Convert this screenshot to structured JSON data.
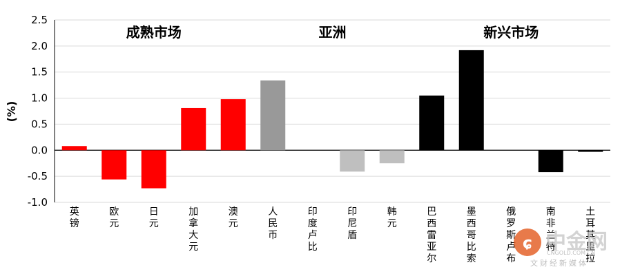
{
  "chart_data": {
    "type": "bar",
    "ylabel": "(%)",
    "ylim": [
      -1.0,
      2.5
    ],
    "yticks": [
      "2.5",
      "2.0",
      "1.5",
      "1.0",
      "0.5",
      "0.0",
      "-0.5",
      "-1.0"
    ],
    "grid": true,
    "groups": [
      {
        "label": "成熟市场",
        "start": 0,
        "end": 4
      },
      {
        "label": "亚洲",
        "start": 5,
        "end": 8
      },
      {
        "label": "新兴市场",
        "start": 9,
        "end": 13
      }
    ],
    "categories": [
      "英镑",
      "欧元",
      "日元",
      "加拿大元",
      "澳元",
      "人民币",
      "印度卢比",
      "印尼盾",
      "韩元",
      "巴西雷亚尔",
      "墨西哥比索",
      "俄罗斯卢布",
      "南非兰特",
      "土耳其里拉"
    ],
    "values": [
      0.08,
      -0.56,
      -0.73,
      0.81,
      0.98,
      1.34,
      0.0,
      -0.41,
      -0.25,
      1.05,
      1.92,
      0.0,
      -0.42,
      -0.03
    ],
    "colors": [
      "#ff0000",
      "#ff0000",
      "#ff0000",
      "#ff0000",
      "#ff0000",
      "#999999",
      "#bfbfbf",
      "#bfbfbf",
      "#bfbfbf",
      "#000000",
      "#000000",
      "#000000",
      "#000000",
      "#000000"
    ]
  },
  "watermark": {
    "text": "中金网",
    "url": "CNGOLD.COM.CN",
    "subtitle": "文财经新媒体"
  }
}
